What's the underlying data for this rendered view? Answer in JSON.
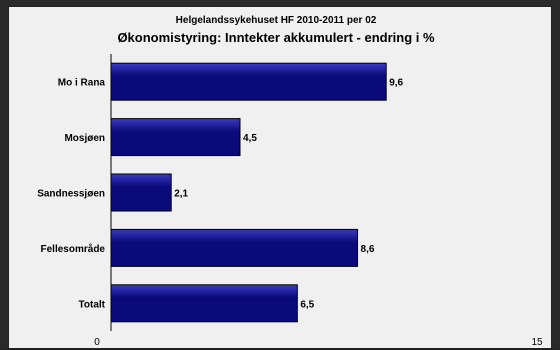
{
  "chart_data": {
    "type": "bar",
    "orientation": "horizontal",
    "title": "Helgelandssykehuset HF 2010-2011 per 02",
    "subtitle": "Økonomistyring: Inntekter akkumulert - endring i %",
    "categories": [
      "Mo i Rana",
      "Mosjøen",
      "Sandnessjøen",
      "Fellesområde",
      "Totalt"
    ],
    "values": [
      9.6,
      4.5,
      2.1,
      8.6,
      6.5
    ],
    "data_labels": [
      "9,6",
      "4,5",
      "2,1",
      "8,6",
      "6,5"
    ],
    "xlim": [
      0,
      15
    ],
    "x_tick_labels": [
      "0",
      "15"
    ],
    "grid": false,
    "legend": "none",
    "colors": {
      "bar_fill": "#0a0a7a",
      "bar_highlight": "#3a3ac0",
      "bar_border": "#000000",
      "plot_background": "#f0f0f0",
      "frame": "#2a2a2a"
    }
  }
}
